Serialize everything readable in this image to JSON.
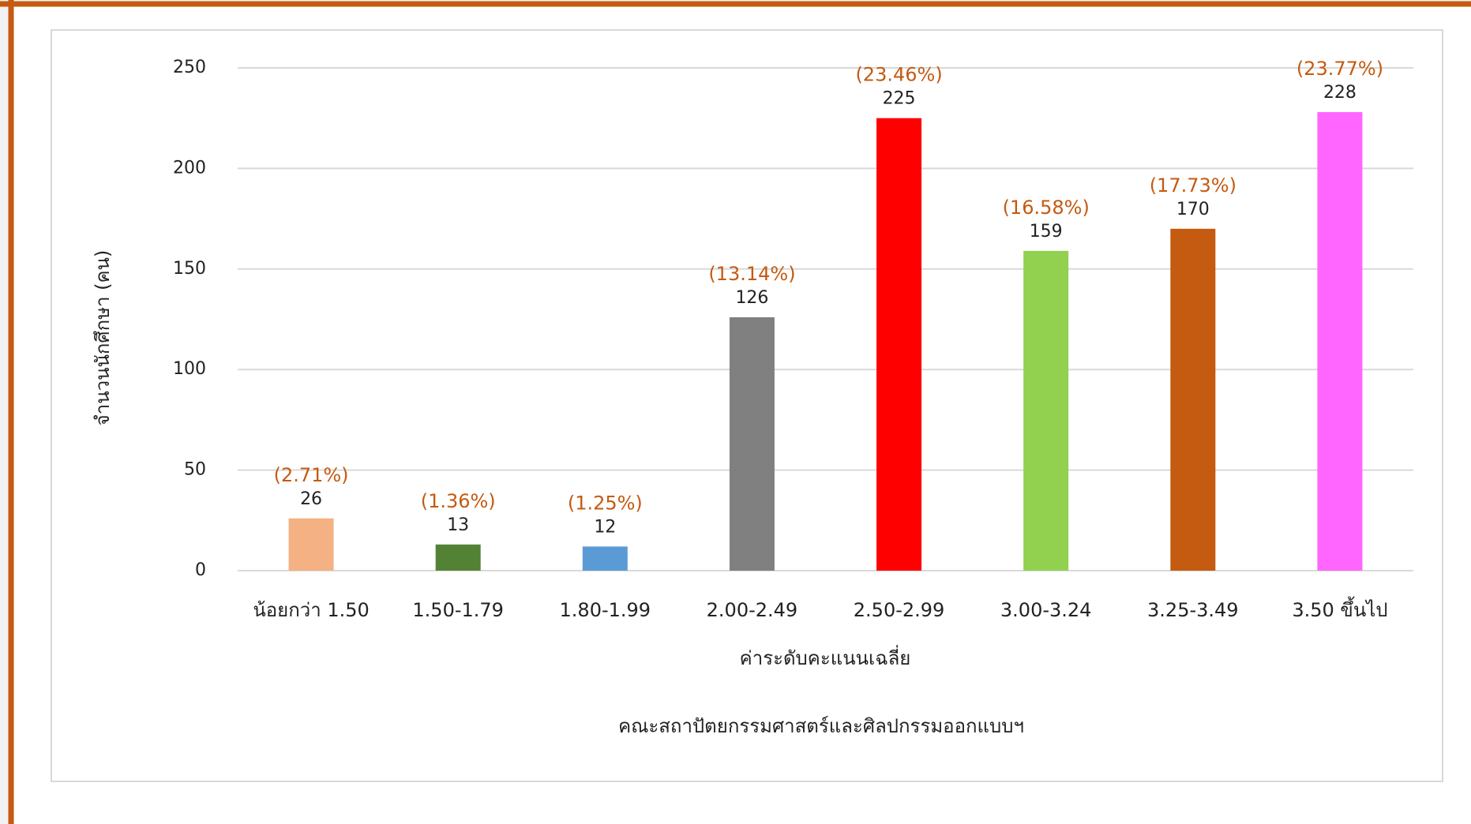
{
  "chart_data": {
    "type": "bar",
    "title": "คณะสถาปัตยกรรมศาสตร์และศิลปกรรมออกแบบฯ",
    "x_label": "ค่าระดับคะแนนเฉลี่ย",
    "y_label": "จำนวนนักศึกษา (คน)",
    "categories": [
      "น้อยกว่า 1.50",
      "1.50-1.79",
      "1.80-1.99",
      "2.00-2.49",
      "2.50-2.99",
      "3.00-3.24",
      "3.25-3.49",
      "3.50 ขึ้นไป"
    ],
    "values": [
      26,
      13,
      12,
      126,
      225,
      159,
      170,
      228
    ],
    "percent_labels": [
      "(2.71%)",
      "(1.36%)",
      "(1.25%)",
      "(13.14%)",
      "(23.46%)",
      "(16.58%)",
      "(17.73%)",
      "(23.77%)"
    ],
    "colors": [
      "#f4b183",
      "#548235",
      "#5b9bd5",
      "#808080",
      "#ff0000",
      "#92d050",
      "#c55a11",
      "#ff66ff"
    ],
    "ylim": [
      0,
      250
    ],
    "yticks": [
      0,
      50,
      100,
      150,
      200,
      250
    ],
    "grid": true
  }
}
